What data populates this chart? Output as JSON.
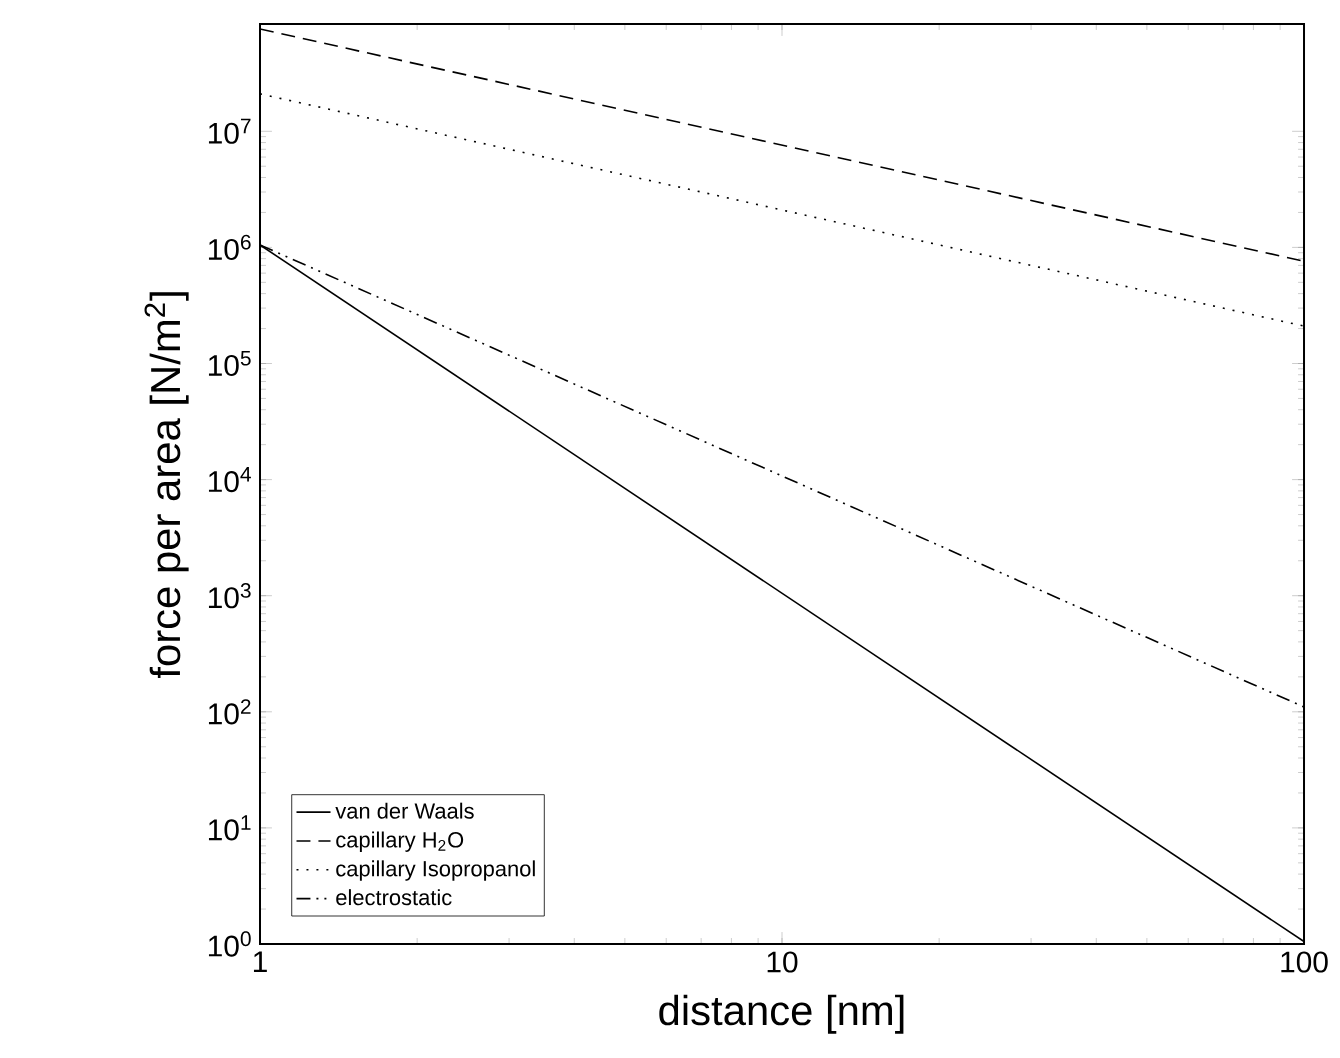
{
  "chart_data": {
    "type": "line",
    "xlabel": "distance [nm]",
    "ylabel": "force per area [N/m$^{2}$]",
    "log": "xy",
    "grid": false,
    "legend": "bottom left",
    "marker": "none",
    "xlim": [
      1,
      100
    ],
    "xticks": [
      1,
      10,
      100
    ],
    "ylim": [
      1,
      84000000
    ],
    "yticks": [
      {
        "value": 1,
        "label": "10$^{0}$"
      },
      {
        "value": 10,
        "label": "10$^{1}$"
      },
      {
        "value": 100,
        "label": "10$^{2}$"
      },
      {
        "value": 1000,
        "label": "10$^{3}$"
      },
      {
        "value": 10000,
        "label": "10$^{4}$"
      },
      {
        "value": 100000,
        "label": "10$^{5}$"
      },
      {
        "value": 1000000,
        "label": "10$^{6}$"
      },
      {
        "value": 10000000,
        "label": "10$^{7}$"
      }
    ],
    "x": [
      1,
      100
    ],
    "series": [
      {
        "name": "van der Waals",
        "color": "#000000",
        "line_style": "solid",
        "values": [
          1050000,
          1.05
        ]
      },
      {
        "name": "capillary H$_{2}$O",
        "color": "#000000",
        "line_style": "dashed",
        "values": [
          76000000,
          760000
        ]
      },
      {
        "name": "capillary Isopropanol",
        "color": "#000000",
        "line_style": "dotted",
        "values": [
          21000000,
          210000
        ]
      },
      {
        "name": "electrostatic",
        "color": "#000000",
        "line_style": "dashdotdot",
        "values": [
          1050000,
          110
        ]
      }
    ]
  }
}
